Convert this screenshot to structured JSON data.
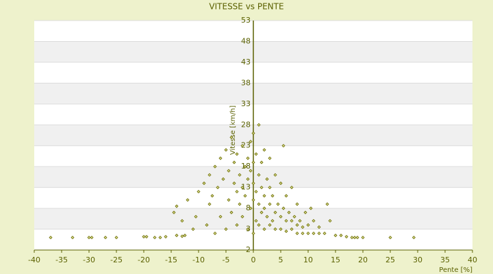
{
  "chart_data": {
    "type": "scatter",
    "title": "VITESSE vs PENTE",
    "x_label": "Pente [%]",
    "y_label": "Vitesse [km/h]",
    "color": "#6b6b00",
    "axis_color": "#5a6000",
    "grid": true,
    "xlim": [
      -40,
      40
    ],
    "xticks": [
      -40,
      -35,
      -30,
      -25,
      -20,
      -15,
      -10,
      -5,
      0,
      5,
      10,
      15,
      20,
      25,
      30,
      35,
      40
    ],
    "ylim": [
      -2,
      53
    ],
    "yticks": [
      -2,
      3,
      8,
      13,
      18,
      23,
      28,
      33,
      38,
      43,
      48,
      53
    ],
    "x": [
      -37,
      -33,
      -30,
      -29.5,
      -27,
      -25,
      -20,
      -19.5,
      -18,
      -17,
      -16,
      -14,
      -13,
      -12.5,
      -14.5,
      -14,
      -13,
      -12,
      -11,
      -10,
      -10.5,
      -9,
      -8.5,
      -8,
      -8,
      -7.5,
      -7,
      -7,
      -6.5,
      -6,
      -6,
      -5.5,
      -5,
      -5,
      -4.5,
      -4.5,
      -4,
      -4,
      -3.5,
      -3.5,
      -3,
      -3,
      -3,
      -2.5,
      -2.5,
      -2,
      -2,
      -2,
      -1.5,
      -1.5,
      -1,
      -1,
      -1,
      -0.5,
      -0.5,
      -0.5,
      0,
      0,
      0,
      0,
      0,
      0.5,
      0.5,
      0.5,
      1,
      1,
      1,
      1,
      1.5,
      1.5,
      1.5,
      2,
      2,
      2,
      2,
      2.5,
      2.5,
      3,
      3,
      3,
      3,
      3.5,
      3.5,
      4,
      4,
      4,
      4.5,
      5,
      5,
      5,
      5.5,
      6,
      6,
      6,
      6.5,
      7,
      7,
      7,
      7.5,
      8,
      8,
      8,
      8.5,
      9,
      9,
      9.5,
      10,
      10,
      10.5,
      11,
      11,
      12,
      12,
      13,
      13.5,
      14,
      15,
      16,
      17,
      18,
      18.5,
      19,
      20,
      25,
      29.3,
      5.5
    ],
    "y": [
      1,
      1,
      1,
      1,
      1,
      1,
      1.2,
      1.2,
      1,
      1,
      1.2,
      1.5,
      1.3,
      1.5,
      7,
      8.5,
      5,
      10,
      3,
      12,
      6,
      14,
      4,
      9,
      16,
      11,
      2,
      18,
      13,
      6,
      20,
      15,
      3,
      22,
      10,
      17,
      7,
      25,
      14,
      19,
      4,
      12,
      21,
      9,
      16,
      6,
      13,
      23,
      11,
      18,
      3,
      15,
      20,
      8,
      17,
      24,
      2,
      10,
      14,
      19,
      26,
      5,
      12,
      21,
      4,
      9,
      16,
      28,
      7,
      13,
      19,
      3,
      8,
      11,
      22,
      6,
      15,
      4,
      9,
      13,
      20,
      5,
      11,
      3,
      7,
      16,
      9,
      3,
      6,
      14,
      8,
      2.5,
      5,
      11,
      7,
      3,
      5,
      13,
      6,
      2,
      4,
      9,
      5,
      2,
      3.5,
      7,
      2,
      4,
      8,
      2,
      5,
      2,
      3.5,
      2,
      9,
      5,
      1.5,
      1.5,
      1.2,
      1,
      1,
      1,
      1,
      1,
      1,
      23
    ]
  }
}
